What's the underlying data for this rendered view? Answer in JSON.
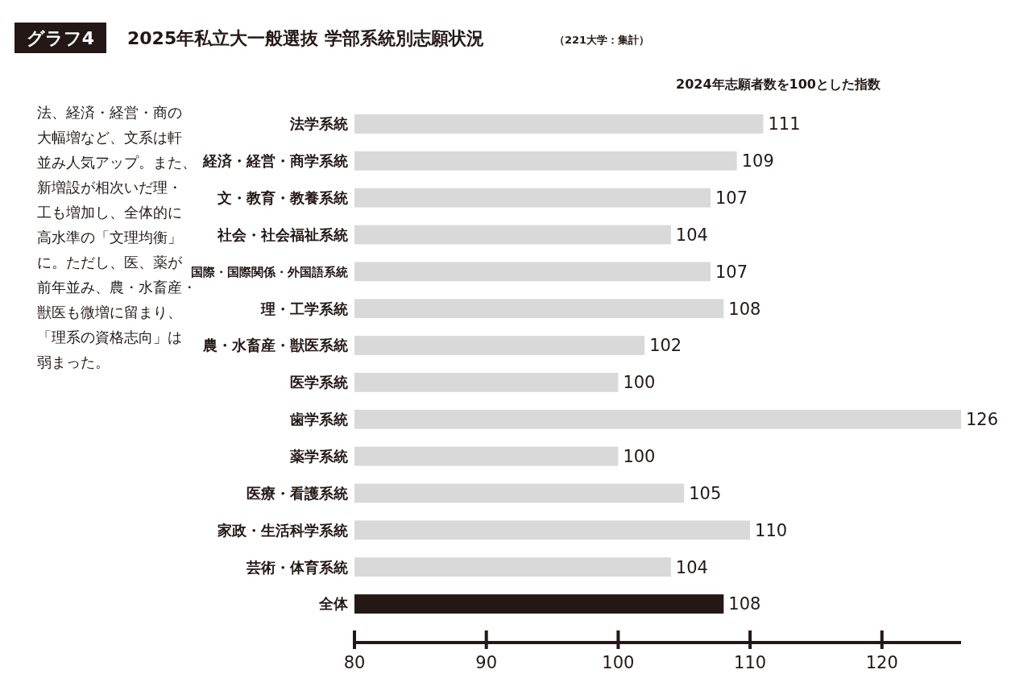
{
  "chart_data": {
    "type": "bar",
    "orientation": "horizontal",
    "title": "2025年私立大一般選抜 学部系統別志願状況",
    "subtitle": "（221大学：集計）",
    "xlabel": "2024年志願者数を100とした指数",
    "annotations": [
      "グラフ4",
      "法、経済・経営・商の大幅増など、文系は軒並み人気アップ。また、新増設が相次いだ理・工も増加し、全体的に高水準の「文理均衡」に。ただし、医、薬が前年並み、農・水畜産・獣医も微増に留まり、「理系の資格志向」は弱まった。"
    ],
    "categories": [
      "法学系統",
      "経済・経営・商学系統",
      "文・教育・教養系統",
      "社会・社会福祉系統",
      "国際・国際関係・外国語系統",
      "理・工学系統",
      "農・水畜産・獣医系統",
      "医学系統",
      "歯学系統",
      "薬学系統",
      "医療・看護系統",
      "家政・生活科学系統",
      "芸術・体育系統",
      "全体"
    ],
    "values": [
      111,
      109,
      107,
      104,
      107,
      108,
      102,
      100,
      126,
      100,
      105,
      110,
      104,
      108
    ],
    "colors": [
      "#d9d9d9",
      "#d9d9d9",
      "#d9d9d9",
      "#d9d9d9",
      "#d9d9d9",
      "#d9d9d9",
      "#d9d9d9",
      "#d9d9d9",
      "#d9d9d9",
      "#d9d9d9",
      "#d9d9d9",
      "#d9d9d9",
      "#d9d9d9",
      "#231815"
    ],
    "xlim": [
      80,
      126
    ],
    "xticks": [
      80,
      90,
      100,
      110,
      120
    ],
    "data_labels": true
  }
}
